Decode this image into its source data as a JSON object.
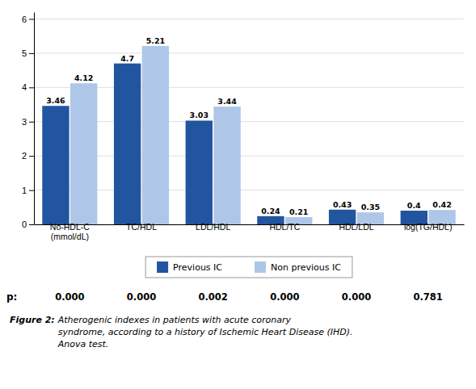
{
  "chart_data": {
    "type": "bar",
    "categories": [
      "No-HDL-C\n(mmol/dL)",
      "TC/HDL",
      "LDL/HDL",
      "HDL/TC",
      "HDL/LDL",
      "log(TG/HDL)"
    ],
    "series": [
      {
        "name": "Previous IC",
        "color": "#2255a0",
        "values": [
          3.46,
          4.7,
          3.03,
          0.24,
          0.43,
          0.4
        ]
      },
      {
        "name": "Non previous IC",
        "color": "#aec6e8",
        "values": [
          4.12,
          5.21,
          3.44,
          0.21,
          0.35,
          0.42
        ]
      }
    ],
    "ylim": [
      0,
      6.2
    ],
    "yticks": [
      0,
      1,
      2,
      3,
      4,
      5,
      6
    ],
    "grid": true,
    "data_labels": true,
    "legend": "bottom",
    "p_label": "p:",
    "p_values": [
      "0.000",
      "0.000",
      "0.002",
      "0.000",
      "0.000",
      "0.781"
    ],
    "caption": {
      "label": "Figure 2:",
      "text": " Atherogenic indexes in patients with acute coronary\nsyndrome, according to a history of Ischemic Heart Disease (IHD).\nAnova test."
    }
  }
}
